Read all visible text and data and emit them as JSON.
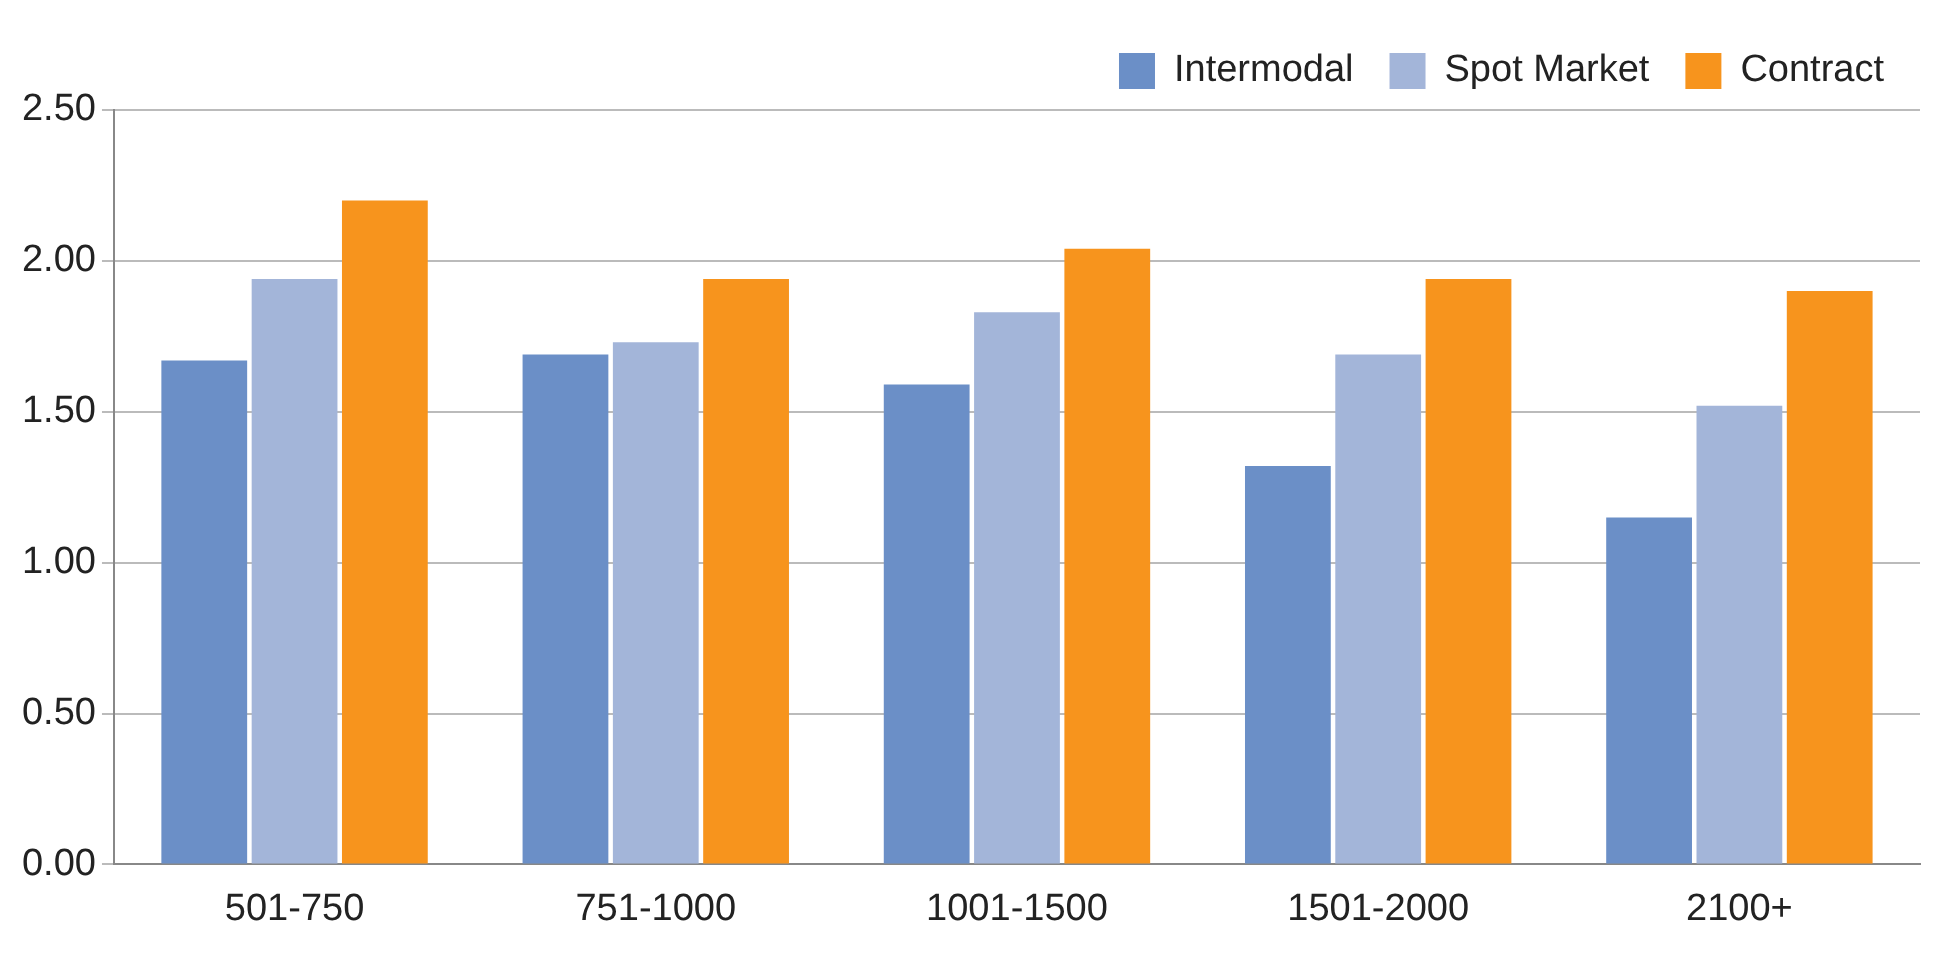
{
  "chart_data": {
    "type": "bar",
    "categories": [
      "501-750",
      "751-1000",
      "1001-1500",
      "1501-2000",
      "2100+"
    ],
    "series": [
      {
        "name": "Intermodal",
        "color": "#6b8fc7",
        "values": [
          1.67,
          1.69,
          1.59,
          1.32,
          1.15
        ]
      },
      {
        "name": "Spot Market",
        "color": "#a3b5d9",
        "values": [
          1.94,
          1.73,
          1.83,
          1.69,
          1.52
        ]
      },
      {
        "name": "Contract",
        "color": "#f7941d",
        "values": [
          2.2,
          1.94,
          2.04,
          1.94,
          1.9
        ]
      }
    ],
    "ylim": [
      0,
      2.5
    ],
    "yticks": [
      {
        "value": 0,
        "label": "0.00"
      },
      {
        "value": 0.5,
        "label": "0.50"
      },
      {
        "value": 1,
        "label": "1.00"
      },
      {
        "value": 1.5,
        "label": "1.50"
      },
      {
        "value": 2,
        "label": "2.00"
      },
      {
        "value": 2.5,
        "label": "2.50"
      }
    ],
    "grid": "y",
    "legend": "top right"
  }
}
